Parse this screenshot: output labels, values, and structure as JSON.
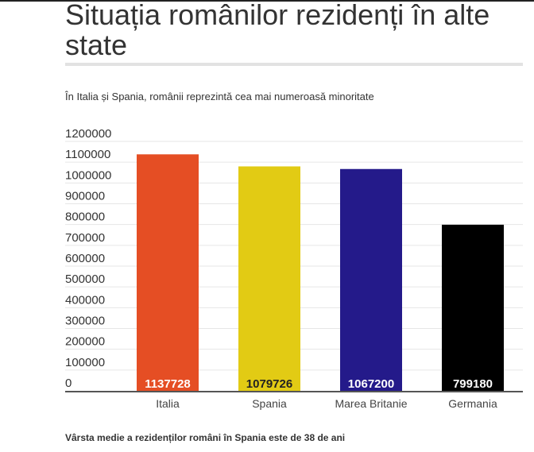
{
  "title": "Situația românilor rezidenți în alte state",
  "subtitle": "În Italia și Spania, românii reprezintă cea mai numeroasă minoritate",
  "footer": "Vârsta medie a rezidenților români în Spania este de 38 de ani",
  "chart_data": {
    "type": "bar",
    "title": "Situația românilor rezidenți în alte state",
    "categories": [
      "Italia",
      "Spania",
      "Marea Britanie",
      "Germania"
    ],
    "values": [
      1137728,
      1079726,
      1067200,
      799180
    ],
    "value_labels": [
      "1137728",
      "1079726",
      "1067200",
      "799180"
    ],
    "colors": [
      "#e54e24",
      "#e2cb14",
      "#241a8a",
      "#000000"
    ],
    "label_colors": [
      "#ffffff",
      "#222222",
      "#ffffff",
      "#ffffff"
    ],
    "ylim": [
      0,
      1200000
    ],
    "yticks": [
      "0",
      "100000",
      "200000",
      "300000",
      "400000",
      "500000",
      "600000",
      "700000",
      "800000",
      "900000",
      "1000000",
      "1100000",
      "1200000"
    ],
    "xlabel": "",
    "ylabel": "",
    "grid": true
  }
}
